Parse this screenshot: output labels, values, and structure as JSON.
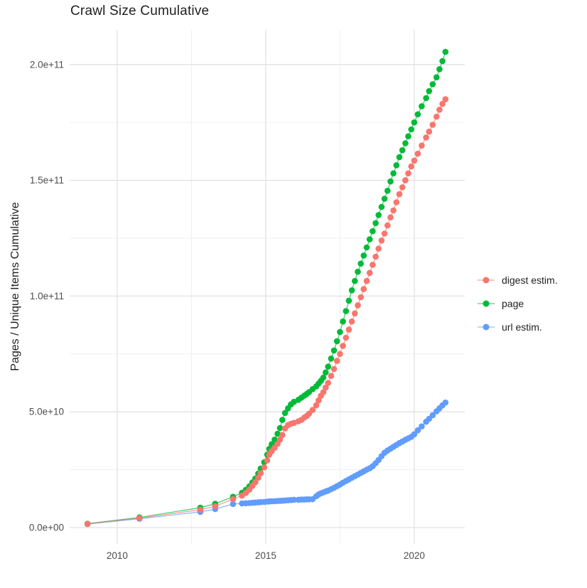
{
  "title": "Crawl Size Cumulative",
  "chart_data": {
    "type": "scatter",
    "title": "Crawl Size Cumulative",
    "xlabel": "",
    "ylabel": "Pages / Unique Items Cumulative",
    "grid": true,
    "legend_position": "right",
    "xlim": [
      2008.4,
      2021.7
    ],
    "ylim": [
      0,
      215000000000
    ],
    "x_ticks": {
      "values": [
        2010,
        2015,
        2020
      ],
      "labels": [
        "2010",
        "2015",
        "2020"
      ]
    },
    "x_minor_ticks": [
      2012.5,
      2017.5
    ],
    "y_ticks": {
      "values": [
        0,
        50,
        100,
        150,
        200
      ],
      "labels": [
        "0.0e+00",
        "5.0e+10",
        "1.0e+11",
        "1.5e+11",
        "2.0e+11"
      ]
    },
    "y_minor_ticks": [
      25,
      75,
      125,
      175
    ],
    "y_unit": "1e9 pages",
    "x": [
      2009.0,
      2010.75,
      2012.8,
      2013.3,
      2013.9,
      2014.2,
      2014.33,
      2014.45,
      2014.55,
      2014.65,
      2014.75,
      2014.83,
      2014.95,
      2015.05,
      2015.12,
      2015.2,
      2015.3,
      2015.4,
      2015.48,
      2015.56,
      2015.65,
      2015.75,
      2015.85,
      2015.95,
      2016.1,
      2016.2,
      2016.3,
      2016.38,
      2016.46,
      2016.58,
      2016.7,
      2016.78,
      2016.86,
      2016.94,
      2017.02,
      2017.1,
      2017.2,
      2017.3,
      2017.4,
      2017.5,
      2017.6,
      2017.7,
      2017.8,
      2017.9,
      2018.0,
      2018.1,
      2018.2,
      2018.3,
      2018.4,
      2018.5,
      2018.6,
      2018.7,
      2018.8,
      2018.9,
      2019.0,
      2019.1,
      2019.2,
      2019.3,
      2019.4,
      2019.5,
      2019.6,
      2019.7,
      2019.8,
      2019.9,
      2020.0,
      2020.12,
      2020.25,
      2020.4,
      2020.5,
      2020.62,
      2020.75,
      2020.85,
      2020.95,
      2021.05
    ],
    "series": [
      {
        "name": "url estim.",
        "color": "#619CFF",
        "values_e9": [
          1.5,
          3.8,
          6.8,
          8.0,
          10.2,
          10.4,
          10.5,
          10.6,
          10.7,
          10.8,
          10.9,
          11.0,
          11.1,
          11.2,
          11.3,
          11.35,
          11.4,
          11.5,
          11.55,
          11.6,
          11.7,
          11.8,
          11.9,
          12.0,
          12.0,
          12.1,
          12.1,
          12.2,
          12.2,
          12.3,
          13.5,
          14.3,
          14.8,
          15.2,
          15.6,
          16.0,
          16.6,
          17.2,
          17.9,
          18.6,
          19.4,
          20.1,
          20.8,
          21.5,
          22.2,
          22.9,
          23.6,
          24.3,
          25.0,
          25.6,
          26.5,
          27.8,
          29.2,
          30.8,
          32.3,
          33.3,
          34.1,
          34.9,
          35.7,
          36.5,
          37.2,
          37.9,
          38.5,
          39.2,
          40.3,
          42.0,
          43.7,
          45.7,
          47.0,
          48.5,
          50.2,
          51.5,
          52.8,
          54.0
        ]
      },
      {
        "name": "page",
        "color": "#00BA38",
        "values_e9": [
          1.7,
          4.4,
          8.6,
          10.3,
          13.3,
          15.0,
          16.3,
          17.8,
          19.5,
          21.2,
          23.3,
          25.5,
          28.2,
          31.5,
          34.0,
          36.0,
          38.0,
          40.5,
          43.0,
          46.5,
          49.5,
          51.5,
          53.2,
          54.3,
          55.2,
          56.1,
          57.0,
          57.7,
          58.5,
          59.8,
          61.0,
          62.2,
          63.4,
          64.8,
          67.0,
          69.5,
          73.0,
          76.5,
          80.5,
          84.5,
          89.0,
          93.5,
          98.0,
          102.5,
          106.5,
          110.5,
          114.0,
          117.5,
          121.0,
          124.5,
          128.0,
          131.5,
          135.0,
          138.5,
          142.0,
          145.5,
          149.5,
          153.0,
          156.5,
          160.0,
          163.0,
          166.0,
          169.0,
          172.0,
          175.0,
          178.5,
          182.0,
          185.5,
          188.5,
          191.5,
          194.5,
          198.0,
          201.5,
          205.5
        ]
      },
      {
        "name": "digest estim.",
        "color": "#F8766D",
        "values_e9": [
          1.6,
          4.1,
          7.7,
          9.2,
          12.3,
          13.8,
          15.0,
          16.4,
          18.0,
          19.6,
          21.5,
          23.5,
          26.0,
          29.0,
          31.5,
          33.0,
          34.5,
          36.2,
          38.0,
          40.0,
          42.8,
          44.3,
          44.8,
          45.2,
          45.9,
          46.5,
          47.5,
          48.2,
          49.2,
          50.8,
          52.8,
          54.9,
          56.9,
          58.5,
          60.5,
          62.5,
          65.5,
          68.5,
          72.0,
          75.0,
          78.5,
          82.0,
          85.5,
          89.0,
          92.5,
          96.0,
          99.5,
          103.0,
          106.5,
          110.0,
          113.5,
          117.0,
          120.5,
          124.0,
          127.0,
          130.5,
          134.0,
          137.0,
          140.5,
          144.0,
          147.0,
          150.0,
          153.0,
          156.0,
          158.5,
          161.5,
          165.0,
          168.5,
          171.0,
          174.0,
          177.5,
          180.5,
          183.0,
          185.0
        ]
      }
    ],
    "legend_order": [
      "digest estim.",
      "page",
      "url estim."
    ]
  },
  "colors": {
    "grid_major": "#e2e2e2",
    "grid_minor": "#efefef",
    "axis_text": "#4d4d4d",
    "text": "#1f1f1f",
    "background": "#ffffff"
  }
}
